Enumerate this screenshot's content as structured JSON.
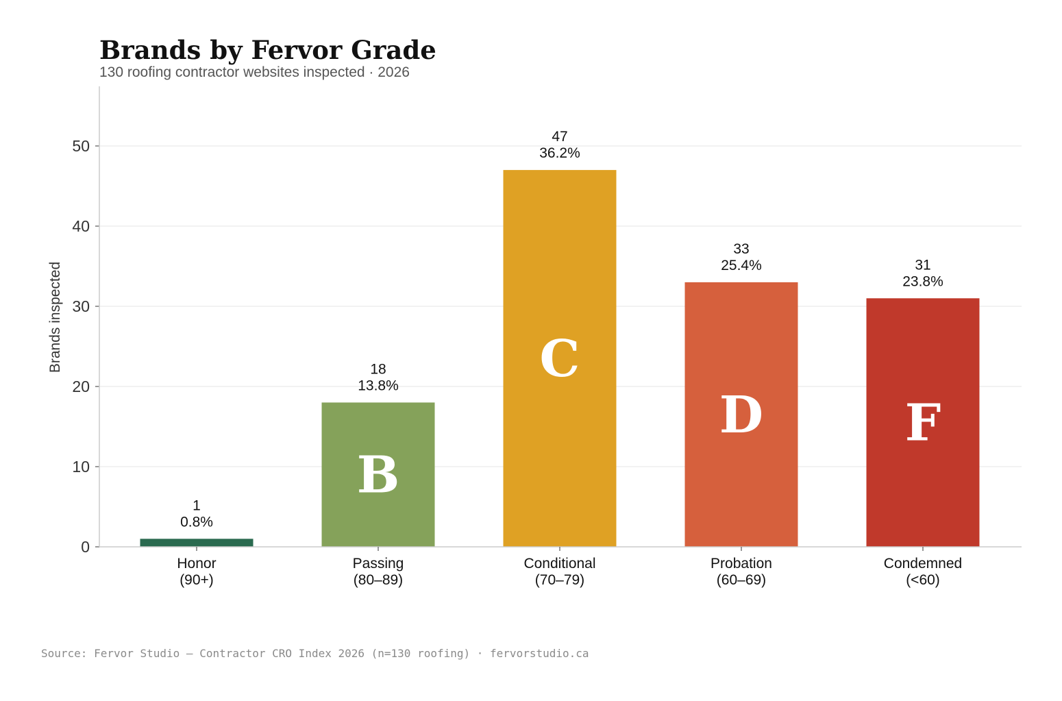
{
  "chart_data": {
    "type": "bar",
    "title": "Brands by Fervor Grade",
    "subtitle": "130 roofing contractor websites inspected · 2026",
    "xlabel": "",
    "ylabel": "Brands inspected",
    "ylim": [
      0,
      57
    ],
    "yticks": [
      0,
      10,
      20,
      30,
      40,
      50
    ],
    "grid": true,
    "categories": [
      {
        "name": "Honor",
        "range": "(90+)",
        "value": 1,
        "percent": "0.8%",
        "grade": "",
        "color": "#2a6a4f"
      },
      {
        "name": "Passing",
        "range": "(80–89)",
        "value": 18,
        "percent": "13.8%",
        "grade": "B",
        "color": "#85a25a"
      },
      {
        "name": "Conditional",
        "range": "(70–79)",
        "value": 47,
        "percent": "36.2%",
        "grade": "C",
        "color": "#dfa124"
      },
      {
        "name": "Probation",
        "range": "(60–69)",
        "value": 33,
        "percent": "25.4%",
        "grade": "D",
        "color": "#d6603d"
      },
      {
        "name": "Condemned",
        "range": "(<60)",
        "value": 31,
        "percent": "23.8%",
        "grade": "F",
        "color": "#c0392b"
      }
    ],
    "source": "Source: Fervor Studio — Contractor CRO Index 2026 (n=130 roofing) · fervorstudio.ca"
  }
}
